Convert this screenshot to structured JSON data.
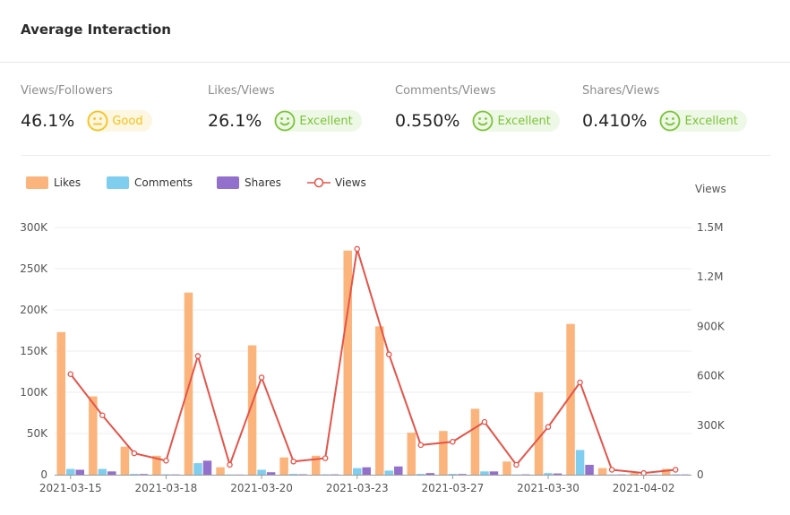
{
  "header": {
    "title": "Average Interaction"
  },
  "metrics": [
    {
      "label": "Views/Followers",
      "value": "46.1%",
      "rating": "Good",
      "face": "neutral",
      "color": "#f5c31c",
      "bg": "#fdf6e0"
    },
    {
      "label": "Likes/Views",
      "value": "26.1%",
      "rating": "Excellent",
      "face": "smile",
      "color": "#7cc33a",
      "bg": "#eef8e6"
    },
    {
      "label": "Comments/Views",
      "value": "0.550%",
      "rating": "Excellent",
      "face": "smile",
      "color": "#7cc33a",
      "bg": "#eef8e6"
    },
    {
      "label": "Shares/Views",
      "value": "0.410%",
      "rating": "Excellent",
      "face": "smile",
      "color": "#7cc33a",
      "bg": "#eef8e6"
    }
  ],
  "legend": {
    "likes": "Likes",
    "comments": "Comments",
    "shares": "Shares",
    "views": "Views"
  },
  "colors": {
    "likes": "#fbb57c",
    "comments": "#80ceef",
    "shares": "#9370cc",
    "views": "#e4544a"
  },
  "chart_data": {
    "type": "bar",
    "title": "Average Interaction",
    "y_left": {
      "min": 0,
      "max": 300000,
      "ticks": [
        0,
        50000,
        100000,
        150000,
        200000,
        250000,
        300000
      ],
      "tick_labels": [
        "0",
        "50K",
        "100K",
        "150K",
        "200K",
        "250K",
        "300K"
      ]
    },
    "y_right": {
      "label": "Views",
      "min": 0,
      "max": 1500000,
      "ticks": [
        0,
        300000,
        600000,
        900000,
        1200000,
        1500000
      ],
      "tick_labels": [
        "0",
        "300K",
        "600K",
        "900K",
        "1.2M",
        "1.5M"
      ]
    },
    "x_tick_labels": [
      {
        "index": 0,
        "label": "2021-03-15"
      },
      {
        "index": 3,
        "label": "2021-03-18"
      },
      {
        "index": 6,
        "label": "2021-03-20"
      },
      {
        "index": 9,
        "label": "2021-03-23"
      },
      {
        "index": 12,
        "label": "2021-03-27"
      },
      {
        "index": 15,
        "label": "2021-03-30"
      },
      {
        "index": 18,
        "label": "2021-04-02"
      }
    ],
    "point_count": 20,
    "series": [
      {
        "name": "Likes",
        "type": "bar",
        "axis": "left",
        "values": [
          173000,
          95000,
          34000,
          23000,
          221000,
          9000,
          157000,
          21000,
          23000,
          272000,
          180000,
          51000,
          53000,
          80000,
          16000,
          100000,
          183000,
          8000,
          2000,
          7000
        ]
      },
      {
        "name": "Comments",
        "type": "bar",
        "axis": "left",
        "values": [
          7000,
          7000,
          1000,
          500,
          14000,
          300,
          6000,
          1000,
          500,
          8000,
          5000,
          1000,
          1000,
          4000,
          300,
          2000,
          30000,
          300,
          100,
          500
        ]
      },
      {
        "name": "Shares",
        "type": "bar",
        "axis": "left",
        "values": [
          6000,
          4000,
          800,
          300,
          17000,
          200,
          3000,
          500,
          400,
          9000,
          10000,
          2000,
          800,
          4000,
          400,
          1500,
          12000,
          300,
          100,
          300
        ]
      },
      {
        "name": "Views",
        "type": "line",
        "axis": "right",
        "values": [
          610000,
          360000,
          130000,
          85000,
          720000,
          60000,
          590000,
          80000,
          100000,
          1370000,
          730000,
          180000,
          200000,
          320000,
          60000,
          290000,
          560000,
          30000,
          10000,
          30000
        ]
      }
    ]
  }
}
